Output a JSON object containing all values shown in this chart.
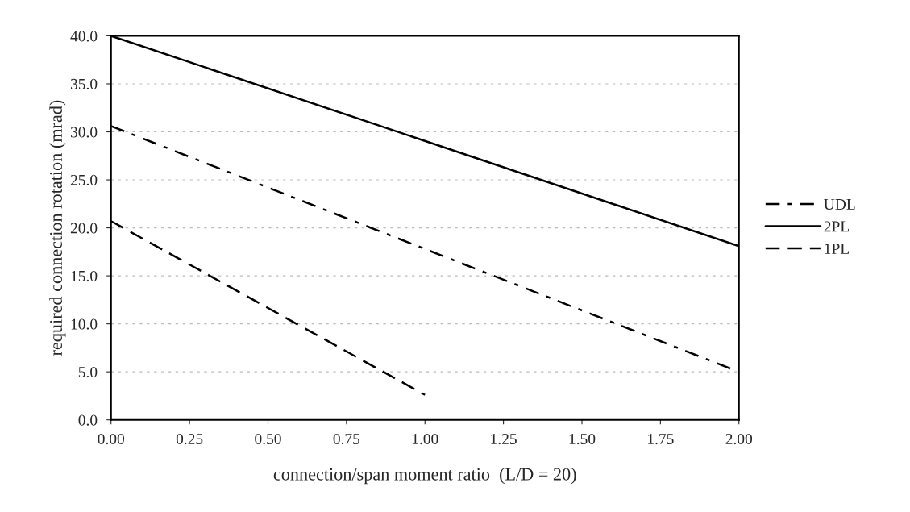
{
  "chart_data": {
    "type": "line",
    "xlabel": "connection/span moment ratio  (L/D = 20)",
    "ylabel": "required connection rotation (mrad)",
    "series": [
      {
        "name": "UDL",
        "color": "#000000",
        "line_style": "dashdot",
        "x": [
          0,
          2.0
        ],
        "values": [
          30.6,
          5.0
        ]
      },
      {
        "name": "2PL",
        "color": "#000000",
        "line_style": "solid",
        "x": [
          0,
          2.0
        ],
        "values": [
          40.0,
          18.1
        ]
      },
      {
        "name": "1PL",
        "color": "#000000",
        "line_style": "dashed",
        "x": [
          0,
          1.0
        ],
        "values": [
          20.7,
          2.6
        ]
      }
    ],
    "xlim": [
      0,
      2.0
    ],
    "xticks": [
      {
        "value": 0,
        "label": "0.00"
      },
      {
        "value": 0.25,
        "label": "0.25"
      },
      {
        "value": 0.5,
        "label": "0.50"
      },
      {
        "value": 0.75,
        "label": "0.75"
      },
      {
        "value": 1.0,
        "label": "1.00"
      },
      {
        "value": 1.25,
        "label": "1.25"
      },
      {
        "value": 1.5,
        "label": "1.50"
      },
      {
        "value": 1.75,
        "label": "1.75"
      },
      {
        "value": 2.0,
        "label": "2.00"
      }
    ],
    "ylim": [
      0,
      40
    ],
    "yticks": [
      {
        "value": 0,
        "label": "0.0"
      },
      {
        "value": 5,
        "label": "5.0"
      },
      {
        "value": 10,
        "label": "10.0"
      },
      {
        "value": 15,
        "label": "15.0"
      },
      {
        "value": 20,
        "label": "20.0"
      },
      {
        "value": 25,
        "label": "25.0"
      },
      {
        "value": 30,
        "label": "30.0"
      },
      {
        "value": 35,
        "label": "35.0"
      },
      {
        "value": 40,
        "label": "40.0"
      }
    ],
    "grid": "y",
    "legend": "right",
    "marker": "none"
  }
}
